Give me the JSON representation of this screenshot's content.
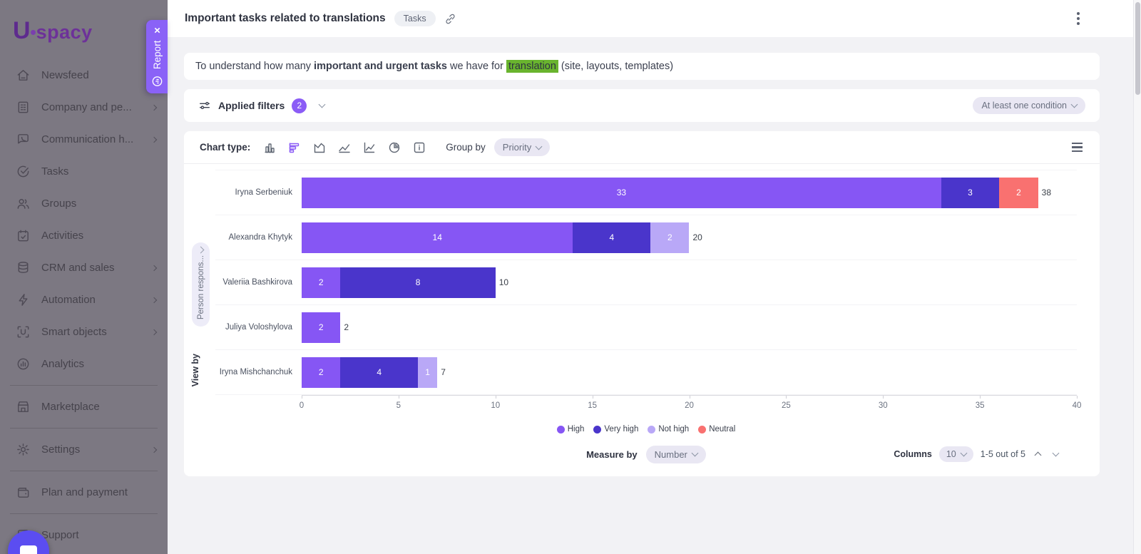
{
  "sidebar": {
    "logo_letter": "U",
    "logo_text": "spacy",
    "items": [
      {
        "label": "Newsfeed",
        "icon": "home-icon",
        "chevron": false,
        "divider_after": false
      },
      {
        "label": "Company and pe...",
        "icon": "building-icon",
        "chevron": true,
        "divider_after": false
      },
      {
        "label": "Communication h...",
        "icon": "chat-icon",
        "chevron": true,
        "divider_after": false
      },
      {
        "label": "Tasks",
        "icon": "tasks-icon",
        "chevron": false,
        "divider_after": false
      },
      {
        "label": "Groups",
        "icon": "groups-icon",
        "chevron": false,
        "divider_after": false
      },
      {
        "label": "Activities",
        "icon": "calendar-icon",
        "chevron": false,
        "divider_after": false
      },
      {
        "label": "CRM and sales",
        "icon": "database-icon",
        "chevron": true,
        "divider_after": false
      },
      {
        "label": "Automation",
        "icon": "bolt-icon",
        "chevron": true,
        "divider_after": false
      },
      {
        "label": "Smart objects",
        "icon": "smart-icon",
        "chevron": true,
        "divider_after": false
      },
      {
        "label": "Analytics",
        "icon": "analytics-icon",
        "chevron": false,
        "divider_after": true
      },
      {
        "label": "Marketplace",
        "icon": "market-icon",
        "chevron": false,
        "divider_after": true
      },
      {
        "label": "Settings",
        "icon": "gear-icon",
        "chevron": true,
        "divider_after": true
      },
      {
        "label": "Plan and payment",
        "icon": "wallet-icon",
        "chevron": false,
        "divider_after": true
      },
      {
        "label": "Support",
        "icon": "support-icon",
        "chevron": false,
        "divider_after": false
      }
    ]
  },
  "report_tab": {
    "label": "Report",
    "close": "×"
  },
  "header": {
    "title": "Important tasks related to translations",
    "badge": "Tasks"
  },
  "description": {
    "prefix": "To understand how many ",
    "bold": "important and urgent tasks",
    "middle": " we have for ",
    "highlight": "translation",
    "suffix": " (site, layouts, templates)"
  },
  "filters": {
    "label": "Applied filters",
    "count": "2",
    "condition": "At least one condition"
  },
  "toolbar": {
    "chart_type_label": "Chart type:",
    "group_by_label": "Group by",
    "group_by_value": "Priority"
  },
  "view_by": {
    "label": "View by",
    "pill": "Person respons..."
  },
  "chart_data": {
    "type": "bar",
    "orientation": "horizontal",
    "stacked": true,
    "title": "Important tasks related to translations",
    "categories": [
      "Iryna Serbeniuk",
      "Alexandra Khytyk",
      "Valeriia Bashkirova",
      "Juliya Voloshylova",
      "Iryna Mishchanchuk"
    ],
    "series": [
      {
        "name": "High",
        "color": "#8656f4",
        "values": [
          33,
          14,
          2,
          2,
          2
        ]
      },
      {
        "name": "Very high",
        "color": "#4a35cb",
        "values": [
          3,
          4,
          8,
          0,
          4
        ]
      },
      {
        "name": "Not high",
        "color": "#b9a8f7",
        "values": [
          0,
          2,
          0,
          0,
          1
        ]
      },
      {
        "name": "Neutral",
        "color": "#f97170",
        "values": [
          2,
          0,
          0,
          0,
          0
        ]
      }
    ],
    "totals": [
      38,
      20,
      10,
      2,
      7
    ],
    "xlim": [
      0,
      40
    ],
    "xticks": [
      0,
      5,
      10,
      15,
      20,
      25,
      30,
      35,
      40
    ],
    "legend_position": "bottom",
    "group_by": "Priority",
    "measure_by": "Number"
  },
  "footer": {
    "measure_label": "Measure by",
    "measure_value": "Number",
    "columns_label": "Columns",
    "columns_value": "10",
    "range": "1-5 out of 5"
  },
  "colors": {
    "accent": "#8b5cf6",
    "highlight_green": "#69b42e",
    "neutral_red": "#f97170"
  }
}
